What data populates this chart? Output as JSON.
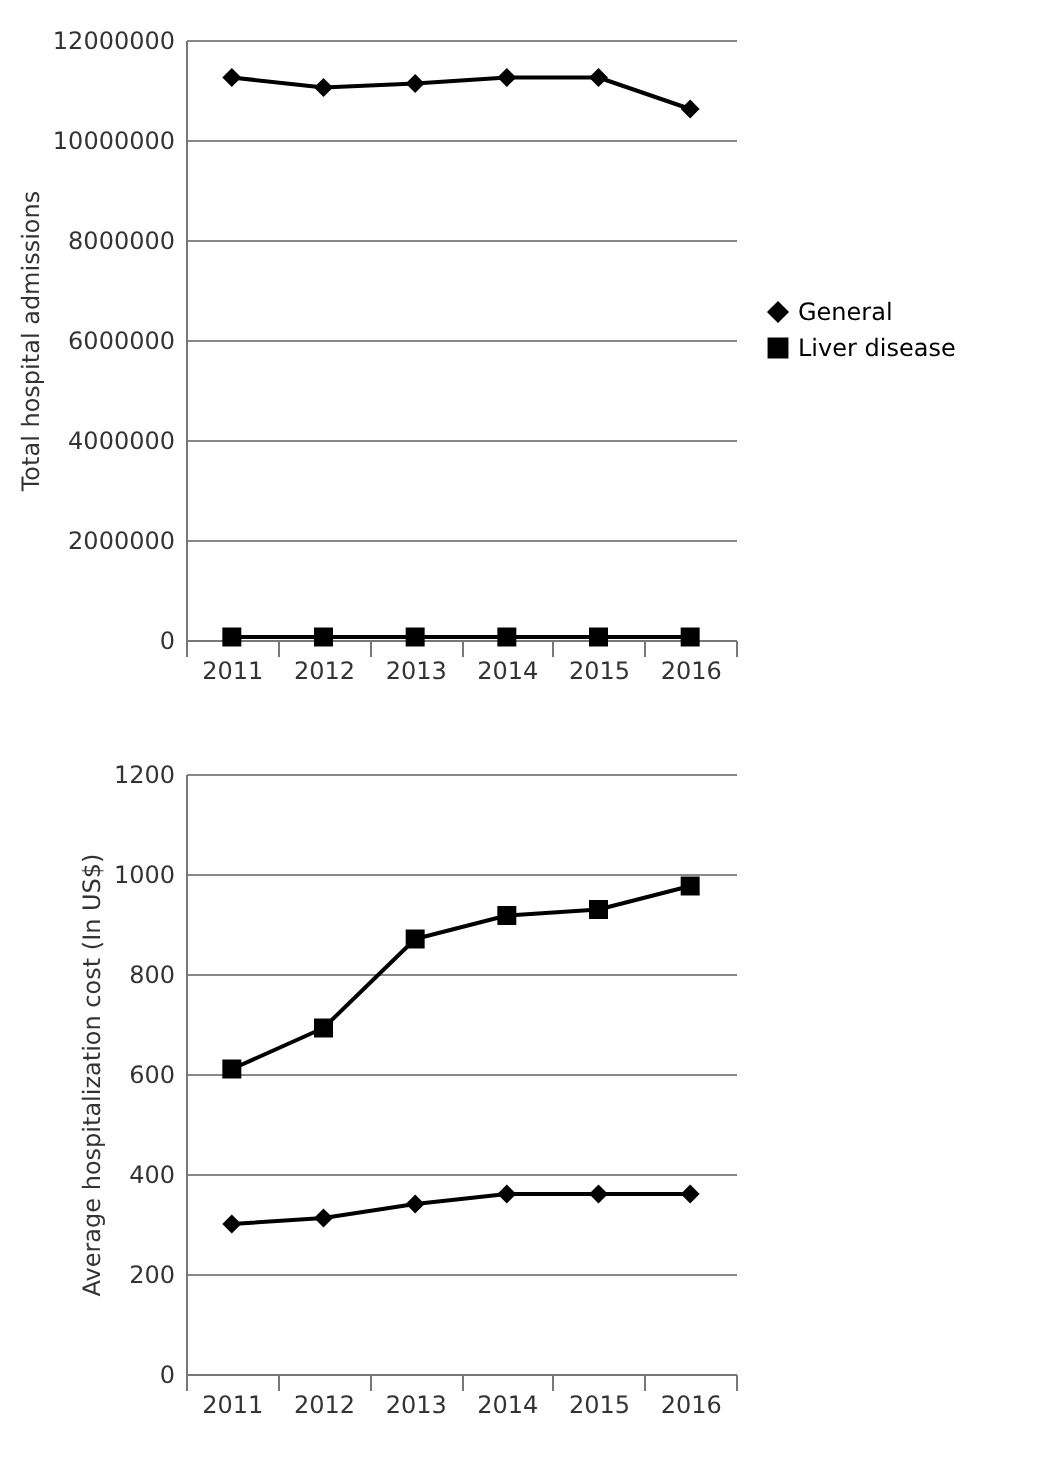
{
  "chart_data": [
    {
      "type": "line",
      "ylabel": "Total hospital admissions",
      "categories": [
        "2011",
        "2012",
        "2013",
        "2014",
        "2015",
        "2016"
      ],
      "series": [
        {
          "name": "General",
          "color": "#000000",
          "marker": "diamond",
          "values": [
            11250000,
            11050000,
            11130000,
            11250000,
            11250000,
            10620000
          ]
        },
        {
          "name": "Liver disease",
          "color": "#000000",
          "marker": "square",
          "values": [
            60000,
            60000,
            60000,
            60000,
            60000,
            60000
          ]
        }
      ],
      "ylim": [
        0,
        12000000
      ],
      "yticks": [
        0,
        2000000,
        4000000,
        6000000,
        8000000,
        10000000,
        12000000
      ],
      "grid": "y",
      "legend": "right"
    },
    {
      "type": "line",
      "ylabel": "Average hospitalization cost (In US$)",
      "categories": [
        "2011",
        "2012",
        "2013",
        "2014",
        "2015",
        "2016"
      ],
      "series": [
        {
          "name": "General",
          "color": "#000000",
          "marker": "diamond",
          "values": [
            300,
            312,
            340,
            360,
            360,
            360
          ]
        },
        {
          "name": "Liver disease",
          "color": "#000000",
          "marker": "square",
          "values": [
            610,
            692,
            870,
            917,
            929,
            976
          ]
        }
      ],
      "ylim": [
        0,
        1200
      ],
      "yticks": [
        0,
        200,
        400,
        600,
        800,
        1000,
        1200
      ],
      "grid": "y",
      "legend": "right"
    }
  ]
}
